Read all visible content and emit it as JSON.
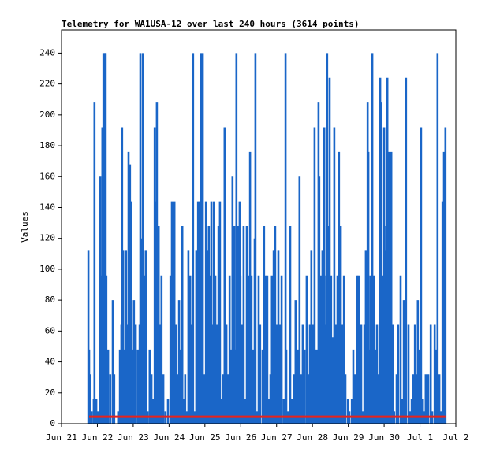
{
  "chart_data": {
    "type": "bar",
    "title": "Telemetry for WA1USA-12 over last 240 hours (3614 points)",
    "y_label": "Values",
    "xlim": [
      0,
      11
    ],
    "xticks": [
      {
        "value": 0,
        "label": "Jun 21"
      },
      {
        "value": 1,
        "label": "Jun 22"
      },
      {
        "value": 2,
        "label": "Jun 23"
      },
      {
        "value": 3,
        "label": "Jun 24"
      },
      {
        "value": 4,
        "label": "Jun 25"
      },
      {
        "value": 5,
        "label": "Jun 26"
      },
      {
        "value": 6,
        "label": "Jun 27"
      },
      {
        "value": 7,
        "label": "Jun 28"
      },
      {
        "value": 8,
        "label": "Jun 29"
      },
      {
        "value": 9,
        "label": "Jun 30"
      },
      {
        "value": 10,
        "label": "Jul 1"
      },
      {
        "value": 11,
        "label": "Jul 2"
      }
    ],
    "ylim": [
      0,
      255
    ],
    "yticks": [
      0,
      20,
      40,
      60,
      80,
      100,
      120,
      140,
      160,
      180,
      200,
      220,
      240
    ],
    "series": [
      {
        "style": "bar",
        "color": "#1a66c8",
        "x": [
          0.75,
          0.77,
          0.79,
          0.84,
          0.9,
          0.92,
          0.97,
          1.01,
          1.08,
          1.12,
          1.14,
          1.17,
          1.21,
          1.23,
          1.25,
          1.3,
          1.36,
          1.43,
          1.47,
          1.58,
          1.63,
          1.67,
          1.69,
          1.72,
          1.76,
          1.8,
          1.83,
          1.87,
          1.91,
          1.94,
          1.98,
          2.02,
          2.07,
          2.13,
          2.18,
          2.2,
          2.24,
          2.27,
          2.31,
          2.35,
          2.4,
          2.46,
          2.51,
          2.55,
          2.6,
          2.64,
          2.66,
          2.71,
          2.73,
          2.77,
          2.79,
          2.84,
          2.9,
          2.97,
          3.04,
          3.08,
          3.12,
          3.15,
          3.19,
          3.23,
          3.28,
          3.32,
          3.37,
          3.41,
          3.45,
          3.5,
          3.54,
          3.59,
          3.63,
          3.67,
          3.72,
          3.76,
          3.81,
          3.85,
          3.89,
          3.94,
          3.98,
          4.03,
          4.07,
          4.11,
          4.16,
          4.18,
          4.22,
          4.25,
          4.29,
          4.33,
          4.38,
          4.42,
          4.47,
          4.51,
          4.55,
          4.6,
          4.64,
          4.69,
          4.73,
          4.77,
          4.82,
          4.86,
          4.88,
          4.93,
          4.97,
          4.99,
          5.04,
          5.08,
          5.13,
          5.17,
          5.21,
          5.26,
          5.3,
          5.35,
          5.39,
          5.41,
          5.46,
          5.5,
          5.54,
          5.61,
          5.65,
          5.7,
          5.74,
          5.79,
          5.83,
          5.87,
          5.92,
          5.96,
          6.01,
          6.05,
          6.09,
          6.14,
          6.2,
          6.25,
          6.27,
          6.31,
          6.38,
          6.42,
          6.49,
          6.53,
          6.6,
          6.64,
          6.69,
          6.73,
          6.78,
          6.84,
          6.89,
          6.93,
          6.97,
          7.02,
          7.06,
          7.08,
          7.13,
          7.17,
          7.19,
          7.24,
          7.28,
          7.33,
          7.37,
          7.39,
          7.41,
          7.46,
          7.48,
          7.52,
          7.57,
          7.61,
          7.66,
          7.7,
          7.74,
          7.79,
          7.83,
          7.88,
          7.92,
          7.99,
          8.03,
          8.1,
          8.14,
          8.18,
          8.25,
          8.29,
          8.36,
          8.4,
          8.45,
          8.49,
          8.54,
          8.56,
          8.6,
          8.62,
          8.67,
          8.71,
          8.76,
          8.8,
          8.84,
          8.89,
          8.91,
          8.95,
          9.0,
          9.02,
          9.06,
          9.09,
          9.13,
          9.17,
          9.2,
          9.24,
          9.28,
          9.35,
          9.39,
          9.46,
          9.5,
          9.55,
          9.59,
          9.61,
          9.68,
          9.72,
          9.77,
          9.81,
          9.86,
          9.9,
          9.94,
          9.99,
          10.03,
          10.08,
          10.12,
          10.16,
          10.23,
          10.3,
          10.34,
          10.41,
          10.45,
          10.49,
          10.54,
          10.58,
          10.63,
          10.67,
          10.71
        ],
        "values": [
          112,
          48,
          32,
          8,
          16,
          208,
          16,
          8,
          160,
          96,
          192,
          240,
          240,
          240,
          96,
          48,
          32,
          80,
          32,
          8,
          48,
          64,
          192,
          112,
          48,
          112,
          64,
          176,
          168,
          144,
          48,
          80,
          64,
          48,
          64,
          240,
          120,
          240,
          96,
          112,
          8,
          48,
          32,
          16,
          192,
          144,
          208,
          128,
          64,
          64,
          96,
          32,
          8,
          16,
          96,
          144,
          48,
          144,
          64,
          32,
          80,
          48,
          128,
          16,
          32,
          8,
          112,
          96,
          64,
          240,
          8,
          112,
          144,
          144,
          240,
          240,
          32,
          144,
          112,
          128,
          96,
          144,
          64,
          144,
          96,
          64,
          128,
          144,
          16,
          32,
          192,
          64,
          32,
          96,
          48,
          160,
          128,
          48,
          240,
          128,
          144,
          96,
          64,
          128,
          16,
          128,
          96,
          176,
          96,
          48,
          120,
          240,
          8,
          96,
          64,
          48,
          128,
          96,
          96,
          16,
          32,
          96,
          112,
          128,
          64,
          112,
          64,
          96,
          16,
          240,
          48,
          8,
          128,
          16,
          32,
          80,
          48,
          160,
          32,
          64,
          48,
          96,
          32,
          64,
          112,
          64,
          192,
          48,
          48,
          208,
          160,
          96,
          112,
          192,
          64,
          96,
          240,
          128,
          224,
          96,
          56,
          192,
          64,
          96,
          176,
          128,
          64,
          96,
          32,
          16,
          8,
          16,
          48,
          32,
          96,
          96,
          64,
          8,
          64,
          112,
          208,
          176,
          48,
          96,
          240,
          96,
          48,
          64,
          32,
          224,
          208,
          96,
          192,
          112,
          128,
          224,
          176,
          64,
          176,
          64,
          8,
          32,
          64,
          96,
          16,
          80,
          80,
          224,
          64,
          8,
          16,
          32,
          64,
          32,
          80,
          48,
          192,
          16,
          8,
          32,
          32,
          64,
          8,
          64,
          48,
          240,
          32,
          8,
          144,
          176,
          192
        ]
      },
      {
        "style": "line",
        "color": "#e8221a",
        "x": [
          0.77,
          10.71
        ],
        "values": [
          4.5,
          4.5
        ]
      }
    ]
  }
}
